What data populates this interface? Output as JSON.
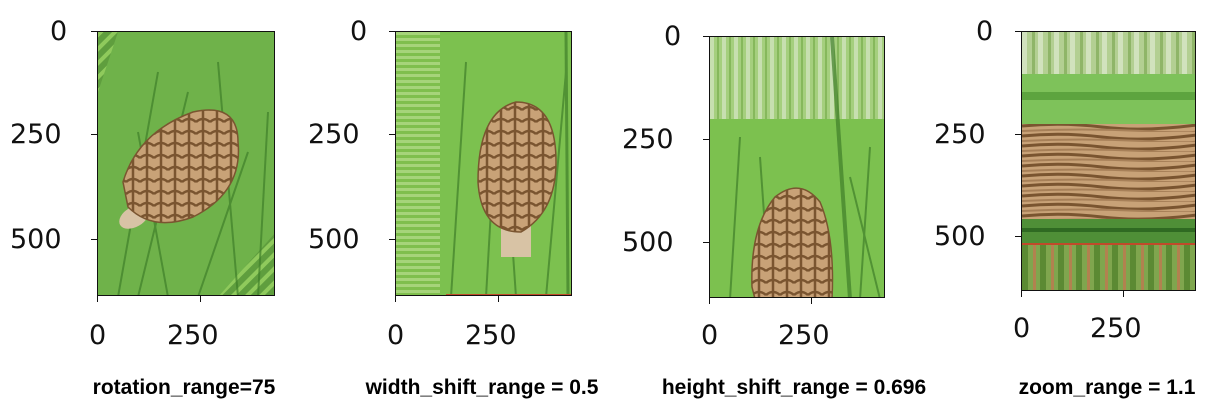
{
  "panels": [
    {
      "caption": "rotation_range=75",
      "x_ticks": [
        "0",
        "250"
      ],
      "y_ticks": [
        "0",
        "250",
        "500"
      ]
    },
    {
      "caption": "width_shift_range = 0.5",
      "x_ticks": [
        "0",
        "250"
      ],
      "y_ticks": [
        "0",
        "250",
        "500"
      ]
    },
    {
      "caption": "height_shift_range = 0.696",
      "x_ticks": [
        "0",
        "250"
      ],
      "y_ticks": [
        "0",
        "250",
        "500"
      ]
    },
    {
      "caption": "zoom_range = 1.1",
      "x_ticks": [
        "0",
        "250"
      ],
      "y_ticks": [
        "0",
        "250",
        "500"
      ]
    }
  ],
  "colors": {
    "grass_light": "#8fca5c",
    "grass_dark": "#3f7f2a",
    "mushroom_cap": "#c8a277",
    "mushroom_ridge": "#7a5530",
    "stem": "#d8c3a5"
  }
}
